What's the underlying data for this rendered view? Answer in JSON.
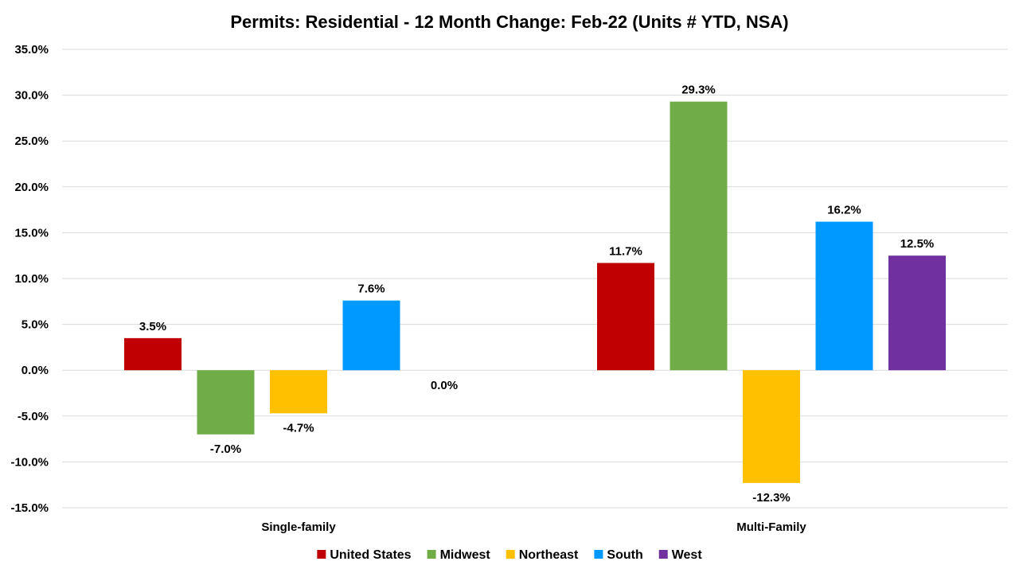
{
  "chart_data": {
    "type": "bar",
    "title": "Permits: Residential - 12 Month Change:  Feb-22 (Units # YTD, NSA)",
    "xlabel": "",
    "ylabel": "",
    "categories": [
      "Single-family",
      "Multi-Family"
    ],
    "series": [
      {
        "name": "United States",
        "color": "#c00000",
        "values": [
          3.5,
          11.7
        ],
        "labels": [
          "3.5%",
          "11.7%"
        ]
      },
      {
        "name": "Midwest",
        "color": "#70ad47",
        "values": [
          -7.0,
          29.3
        ],
        "labels": [
          "-7.0%",
          "29.3%"
        ]
      },
      {
        "name": "Northeast",
        "color": "#ffc000",
        "values": [
          -4.7,
          -12.3
        ],
        "labels": [
          "-4.7%",
          "-12.3%"
        ]
      },
      {
        "name": "South",
        "color": "#0099ff",
        "values": [
          7.6,
          16.2
        ],
        "labels": [
          "7.6%",
          "16.2%"
        ]
      },
      {
        "name": "West",
        "color": "#7030a0",
        "values": [
          0.0,
          12.5
        ],
        "labels": [
          "0.0%",
          "12.5%"
        ]
      }
    ],
    "ylim": [
      -15,
      35
    ],
    "yticks": [
      35,
      30,
      25,
      20,
      15,
      10,
      5,
      0,
      -5,
      -10,
      -15
    ],
    "ytick_labels": [
      "35.0%",
      "30.0%",
      "25.0%",
      "20.0%",
      "15.0%",
      "10.0%",
      "5.0%",
      "0.0%",
      "-5.0%",
      "-10.0%",
      "-15.0%"
    ],
    "grid": true,
    "legend_position": "bottom"
  }
}
